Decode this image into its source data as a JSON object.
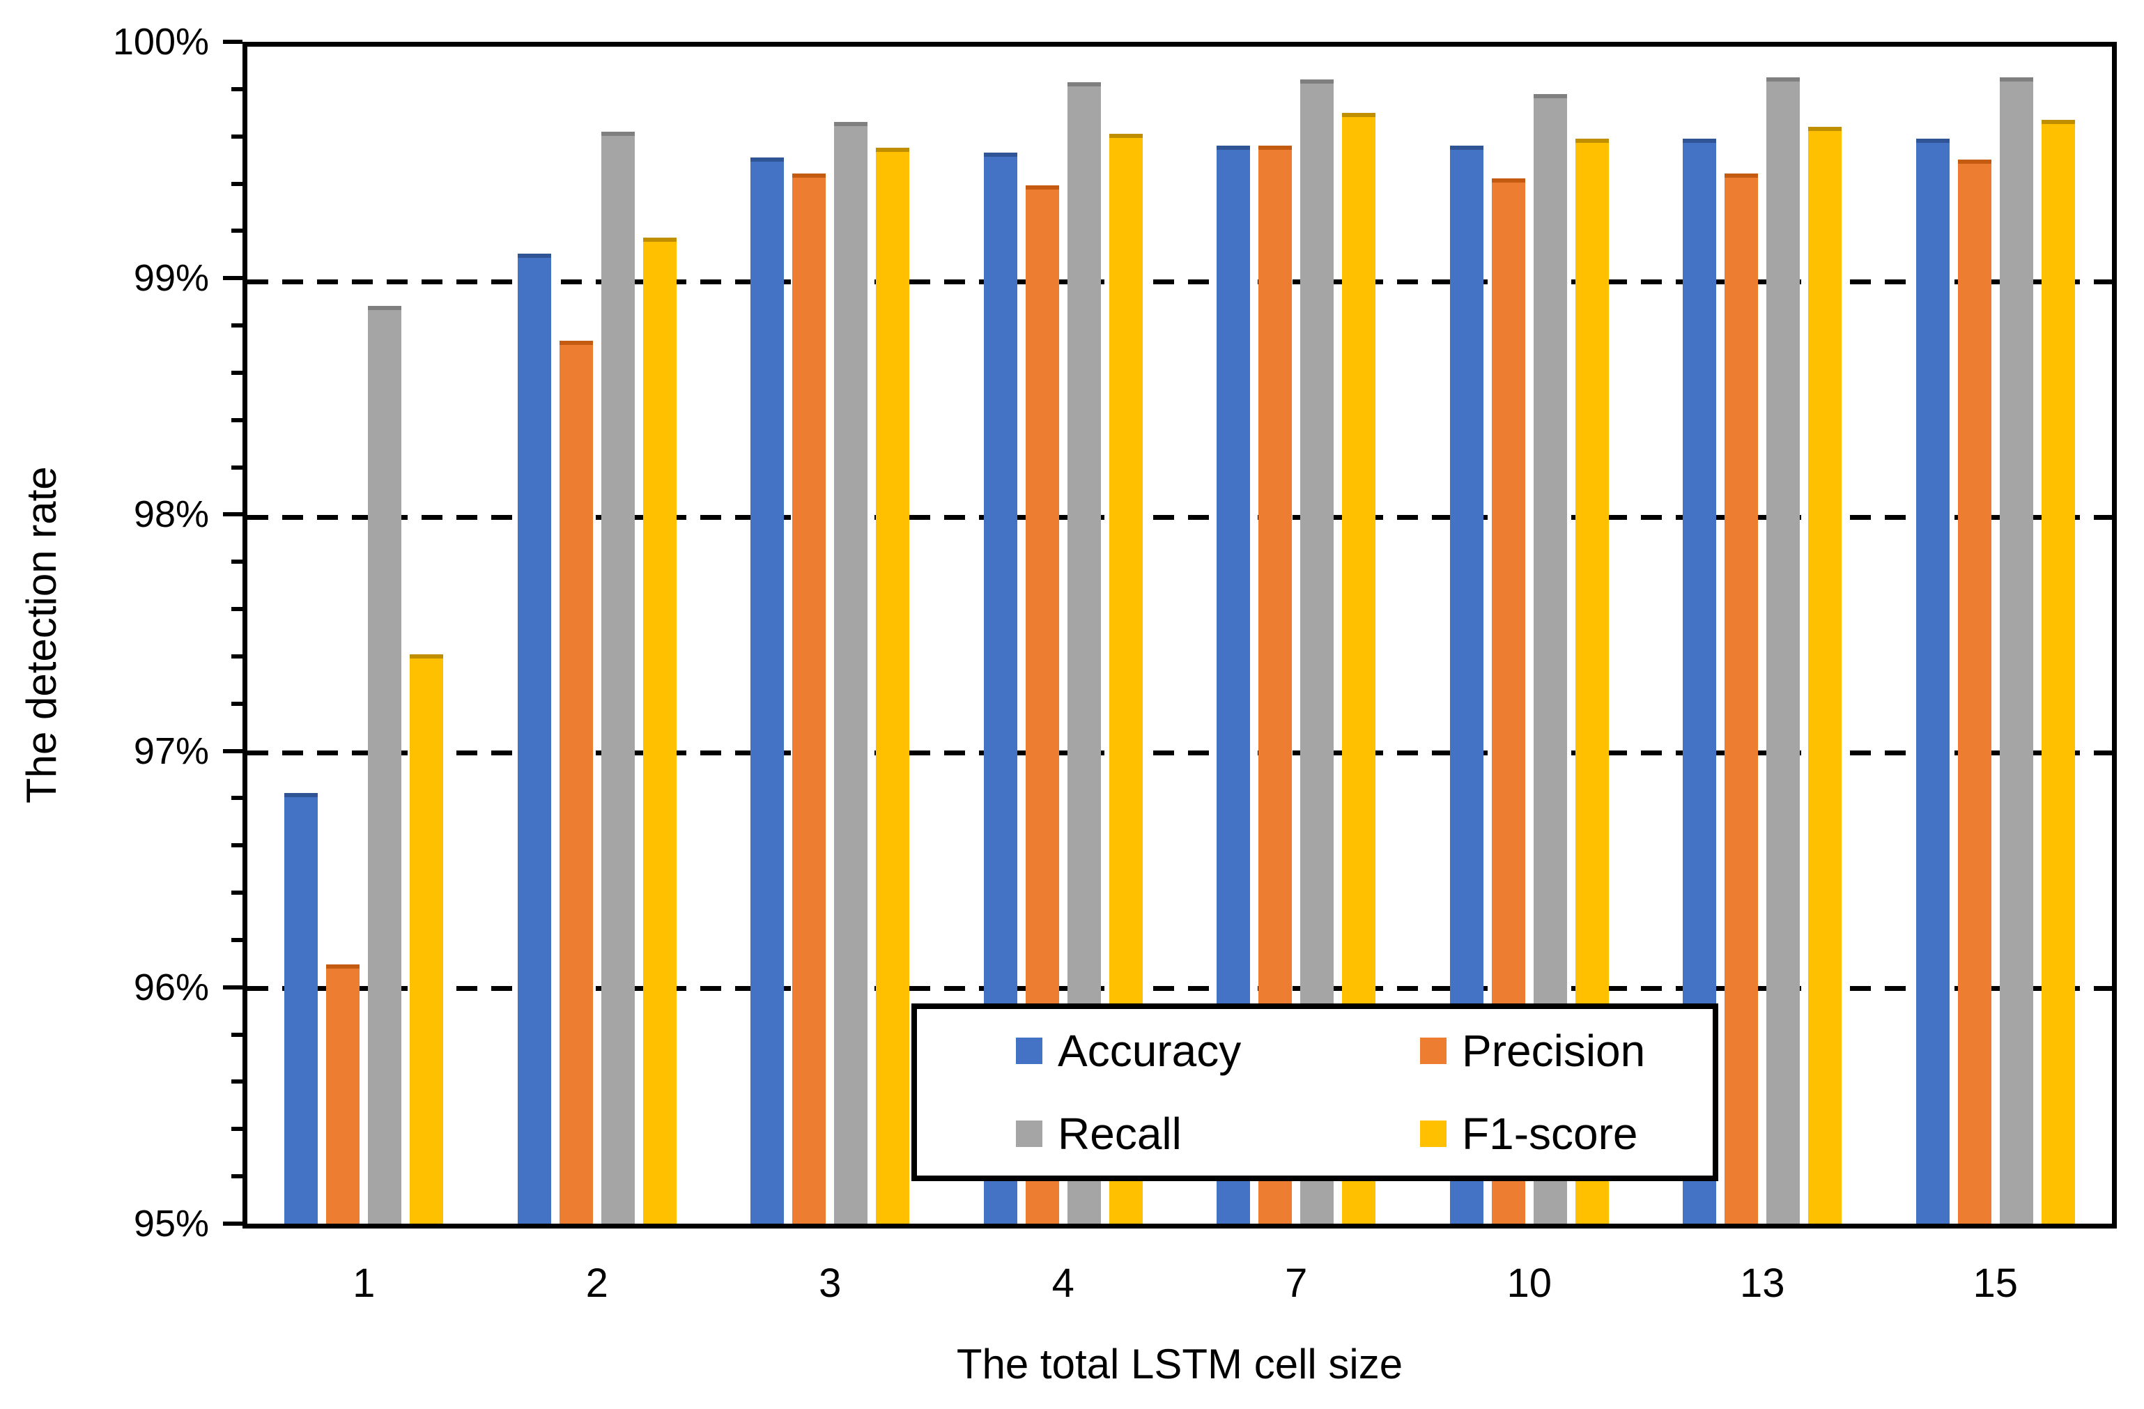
{
  "chart_data": {
    "type": "bar",
    "title": "",
    "xlabel": "The total LSTM cell size",
    "ylabel": "The detection rate",
    "categories": [
      "1",
      "2",
      "3",
      "4",
      "7",
      "10",
      "13",
      "15"
    ],
    "series": [
      {
        "name": "Accuracy",
        "color": "#4472C4",
        "edge_color": "#2F5597",
        "values": [
          96.83,
          99.12,
          99.53,
          99.55,
          99.58,
          99.58,
          99.61,
          99.61
        ]
      },
      {
        "name": "Precision",
        "color": "#ED7D31",
        "edge_color": "#C55A11",
        "values": [
          96.1,
          98.75,
          99.46,
          99.41,
          99.58,
          99.44,
          99.46,
          99.52
        ]
      },
      {
        "name": "Recall",
        "color": "#A5A5A5",
        "edge_color": "#7F7F7F",
        "values": [
          98.9,
          99.64,
          99.68,
          99.85,
          99.86,
          99.8,
          99.87,
          99.87
        ]
      },
      {
        "name": "F1-score",
        "color": "#FFC000",
        "edge_color": "#BF8F00",
        "values": [
          97.42,
          99.19,
          99.57,
          99.63,
          99.72,
          99.61,
          99.66,
          99.69
        ]
      }
    ],
    "ylim": [
      95,
      100
    ],
    "ytick_step": 1,
    "ytick_minor_step": 0.2,
    "y_tick_labels": [
      "100%",
      "99%",
      "98%",
      "97%",
      "96%",
      "95%"
    ],
    "ytick_suffix": "%",
    "grid": "horizontal dashed at major ticks",
    "legend_position": "inside bottom-center",
    "plot_border_color": "#000000",
    "background_color": "#ffffff"
  }
}
